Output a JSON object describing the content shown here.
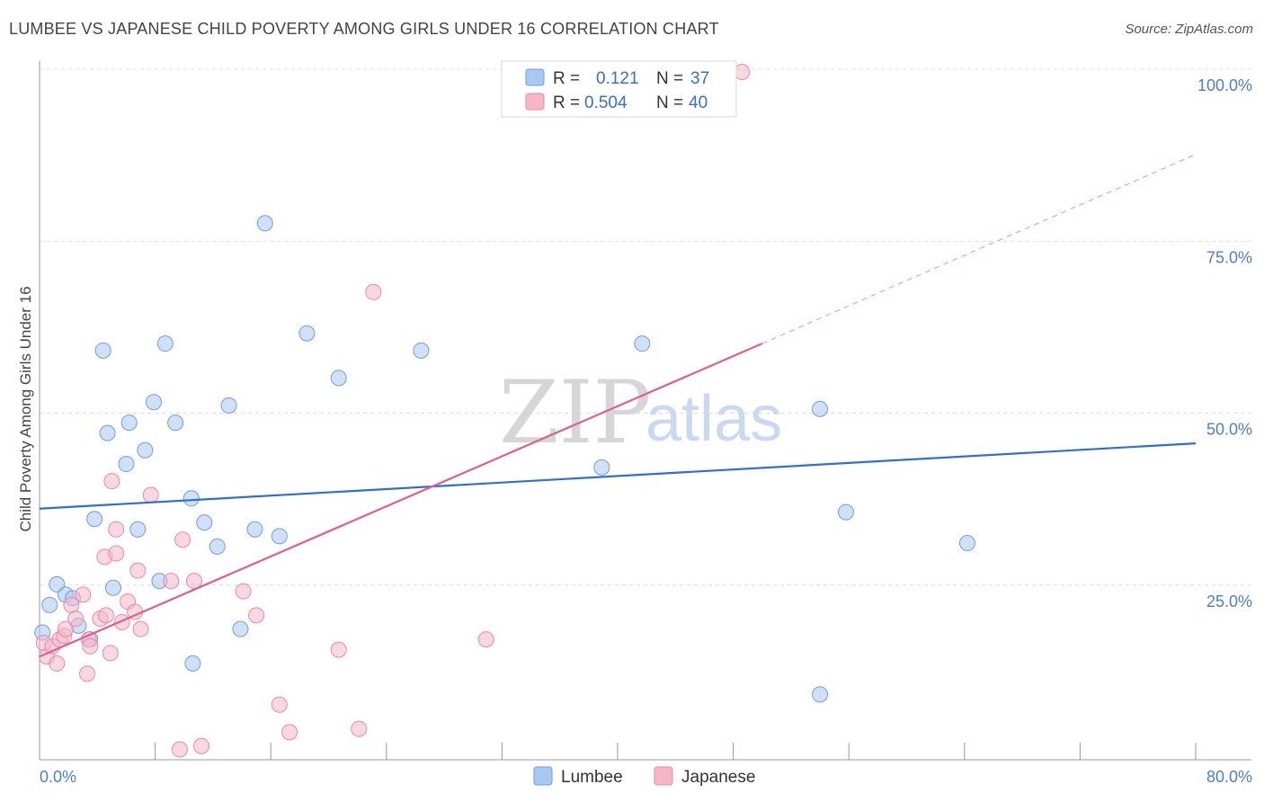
{
  "header": {
    "title": "LUMBEE VS JAPANESE CHILD POVERTY AMONG GIRLS UNDER 16 CORRELATION CHART",
    "source": "Source: ZipAtlas.com"
  },
  "watermark": {
    "zip": "ZIP",
    "atlas": "atlas"
  },
  "legend": {
    "rows": [
      {
        "r_label": "R =",
        "r_value": "0.121",
        "n_label": "N =",
        "n_value": "37",
        "color": "#a9c8f0"
      },
      {
        "r_label": "R =",
        "r_value": "0.504",
        "n_label": "N =",
        "n_value": "40",
        "color": "#f5b7c8"
      }
    ]
  },
  "bottom_legend": [
    "Lumbee",
    "Japanese"
  ],
  "chart_data": {
    "type": "scatter",
    "title": "LUMBEE VS JAPANESE CHILD POVERTY AMONG GIRLS UNDER 16 CORRELATION CHART",
    "xlabel": "",
    "ylabel": "Child Poverty Among Girls Under 16",
    "xlim": [
      0,
      80
    ],
    "ylim": [
      0,
      100
    ],
    "x_tick_labels": [
      "0.0%",
      "80.0%"
    ],
    "y_tick_labels": [
      "100.0%",
      "75.0%",
      "50.0%",
      "25.0%"
    ],
    "y_tick_values": [
      100,
      75,
      50,
      25
    ],
    "series": [
      {
        "name": "Lumbee",
        "color": "#a9c8f0",
        "stroke": "#6f9fde",
        "line_color": "#2f6fcf",
        "trend": {
          "x": [
            0,
            80
          ],
          "y": [
            36.5,
            46
          ]
        },
        "points": [
          [
            0.2,
            18.5
          ],
          [
            0.7,
            22.5
          ],
          [
            1.2,
            25.5
          ],
          [
            1.8,
            24
          ],
          [
            2.3,
            23.5
          ],
          [
            2.7,
            19.5
          ],
          [
            3.5,
            17.5
          ],
          [
            3.8,
            35
          ],
          [
            4.4,
            59.5
          ],
          [
            4.7,
            47.5
          ],
          [
            5.1,
            25
          ],
          [
            6.0,
            43
          ],
          [
            6.2,
            49
          ],
          [
            6.8,
            33.5
          ],
          [
            7.3,
            45
          ],
          [
            7.9,
            52
          ],
          [
            8.3,
            26
          ],
          [
            8.7,
            60.5
          ],
          [
            9.4,
            49
          ],
          [
            10.5,
            38
          ],
          [
            10.6,
            14
          ],
          [
            11.4,
            34.5
          ],
          [
            12.3,
            31
          ],
          [
            13.1,
            51.5
          ],
          [
            13.9,
            19
          ],
          [
            14.9,
            33.5
          ],
          [
            15.6,
            78
          ],
          [
            16.6,
            32.5
          ],
          [
            18.5,
            62
          ],
          [
            20.7,
            55.5
          ],
          [
            26.4,
            59.5
          ],
          [
            38.9,
            42.5
          ],
          [
            41.7,
            60.5
          ],
          [
            54.0,
            51
          ],
          [
            54.0,
            9.5
          ],
          [
            55.8,
            36
          ],
          [
            64.2,
            31.5
          ]
        ]
      },
      {
        "name": "Japanese",
        "color": "#f5b7c8",
        "stroke": "#e88aa6",
        "line_color": "#e0608c",
        "trend": {
          "x": [
            0,
            50
          ],
          "y": [
            15,
            60.5
          ]
        },
        "trend_extension": {
          "x": [
            50,
            80
          ],
          "y": [
            60.5,
            88
          ]
        },
        "points": [
          [
            0.3,
            17
          ],
          [
            0.5,
            15
          ],
          [
            0.9,
            16.5
          ],
          [
            1.2,
            14
          ],
          [
            1.4,
            17.5
          ],
          [
            1.7,
            18
          ],
          [
            3.3,
            12.5
          ],
          [
            3.4,
            17.5
          ],
          [
            1.8,
            19
          ],
          [
            2.2,
            22.5
          ],
          [
            2.5,
            20.5
          ],
          [
            3.0,
            24
          ],
          [
            3.5,
            16.5
          ],
          [
            4.2,
            20.5
          ],
          [
            4.5,
            29.5
          ],
          [
            4.6,
            21
          ],
          [
            4.9,
            15.5
          ],
          [
            5.0,
            40.5
          ],
          [
            5.3,
            30
          ],
          [
            5.3,
            33.5
          ],
          [
            5.7,
            20
          ],
          [
            6.1,
            23
          ],
          [
            6.6,
            21.5
          ],
          [
            6.8,
            27.5
          ],
          [
            7.0,
            19
          ],
          [
            7.7,
            38.5
          ],
          [
            9.1,
            26
          ],
          [
            9.7,
            1.5
          ],
          [
            9.9,
            32
          ],
          [
            10.7,
            26
          ],
          [
            11.2,
            2
          ],
          [
            14.1,
            24.5
          ],
          [
            15.0,
            21
          ],
          [
            16.6,
            8
          ],
          [
            17.3,
            4
          ],
          [
            20.7,
            16
          ],
          [
            23.1,
            68
          ],
          [
            22.1,
            4.5
          ],
          [
            30.9,
            17.5
          ],
          [
            48.6,
            100
          ]
        ]
      }
    ]
  }
}
